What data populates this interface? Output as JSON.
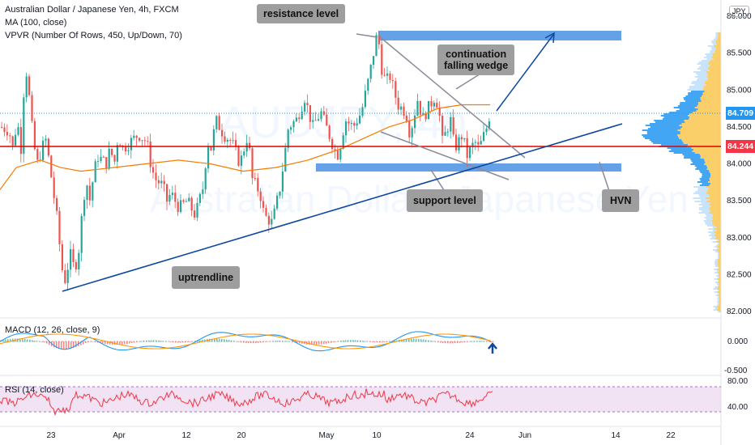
{
  "header": {
    "title": "Australian Dollar / Japanese Yen, 4h, FXCM",
    "ma": "MA (100, close)",
    "vpvr": "VPVR (Number Of Rows, 450, Up/Down, 70)",
    "currency_badge": "JPY"
  },
  "watermark": {
    "symbol": "AUDJPY, 4h",
    "name": "Australian Dollar / Japanese Yen"
  },
  "annotations": {
    "resistance": "resistance level",
    "continuation_line1": "continuation",
    "continuation_line2": "falling wedge",
    "support": "support level",
    "uptrend": "uptrendline",
    "hvn": "HVN"
  },
  "price_tags": {
    "last": "84.709",
    "red_line": "84.244",
    "last_color": "#2196f3",
    "red_color": "#f23645"
  },
  "macd": {
    "label": "MACD (12, 26, close, 9)",
    "ticks": [
      "0.000",
      "-0.500"
    ]
  },
  "rsi": {
    "label": "RSI (14, close)",
    "ticks": [
      "80.00",
      "40.00"
    ]
  },
  "colors": {
    "up": "#26a69a",
    "down": "#ef5350",
    "ma": "#f57c00",
    "trend": "#0d47a1",
    "zone": "#4a90e2",
    "macd_line": "#2196f3",
    "signal_line": "#ff9800",
    "rsi_line": "#f23645",
    "rsi_band": "#e1bee7",
    "vp_yellow": "#f9c74f",
    "vp_blue": "#90caf9"
  },
  "chart_data": {
    "type": "candlestick",
    "y_axis": {
      "ticks": [
        "86.000",
        "85.500",
        "85.000",
        "84.500",
        "84.000",
        "83.500",
        "83.000",
        "82.500",
        "82.000"
      ],
      "range": [
        81.95,
        86.1
      ]
    },
    "x_axis": {
      "ticks": [
        "23",
        "Apr",
        "12",
        "20",
        "May",
        "10",
        "24",
        "Jun",
        "14",
        "22"
      ]
    },
    "ohlc_path": [
      [
        0,
        84.5
      ],
      [
        10,
        84.45
      ],
      [
        15,
        84.2
      ],
      [
        20,
        84.6
      ],
      [
        25,
        84.2
      ],
      [
        30,
        85.4
      ],
      [
        35,
        84.9
      ],
      [
        40,
        84.3
      ],
      [
        45,
        84.0
      ],
      [
        55,
        84.35
      ],
      [
        60,
        84.0
      ],
      [
        65,
        83.6
      ],
      [
        70,
        83.2
      ],
      [
        75,
        82.6
      ],
      [
        80,
        82.4
      ],
      [
        85,
        82.8
      ],
      [
        90,
        82.6
      ],
      [
        95,
        82.7
      ],
      [
        100,
        83.3
      ],
      [
        105,
        83.8
      ],
      [
        110,
        83.5
      ],
      [
        115,
        83.9
      ],
      [
        120,
        84.1
      ],
      [
        130,
        84.0
      ],
      [
        135,
        84.2
      ],
      [
        140,
        84.0
      ],
      [
        145,
        84.4
      ],
      [
        150,
        84.2
      ],
      [
        160,
        84.3
      ],
      [
        170,
        84.4
      ],
      [
        180,
        84.3
      ],
      [
        185,
        84.0
      ],
      [
        190,
        83.8
      ],
      [
        200,
        83.7
      ],
      [
        205,
        83.5
      ],
      [
        210,
        83.6
      ],
      [
        220,
        83.4
      ],
      [
        230,
        83.5
      ],
      [
        240,
        83.3
      ],
      [
        250,
        83.7
      ],
      [
        255,
        84.3
      ],
      [
        260,
        84.2
      ],
      [
        265,
        84.6
      ],
      [
        275,
        84.4
      ],
      [
        285,
        84.3
      ],
      [
        295,
        84.0
      ],
      [
        305,
        84.4
      ],
      [
        310,
        83.8
      ],
      [
        320,
        83.6
      ],
      [
        325,
        83.3
      ],
      [
        335,
        83.2
      ],
      [
        345,
        83.7
      ],
      [
        350,
        84.1
      ],
      [
        355,
        84.5
      ],
      [
        365,
        84.6
      ],
      [
        375,
        84.9
      ],
      [
        385,
        84.5
      ],
      [
        395,
        84.7
      ],
      [
        405,
        84.4
      ],
      [
        415,
        84.1
      ],
      [
        420,
        84.3
      ],
      [
        425,
        84.6
      ],
      [
        435,
        84.5
      ],
      [
        445,
        84.7
      ],
      [
        455,
        85.2
      ],
      [
        460,
        85.5
      ],
      [
        465,
        85.8
      ],
      [
        470,
        85.3
      ],
      [
        475,
        85.1
      ],
      [
        480,
        85.2
      ],
      [
        490,
        84.8
      ],
      [
        500,
        84.7
      ],
      [
        505,
        84.4
      ],
      [
        515,
        84.9
      ],
      [
        520,
        84.6
      ],
      [
        525,
        84.7
      ],
      [
        535,
        84.9
      ],
      [
        540,
        84.8
      ],
      [
        545,
        84.3
      ],
      [
        555,
        84.6
      ],
      [
        560,
        84.2
      ],
      [
        570,
        84.4
      ],
      [
        575,
        84.1
      ],
      [
        585,
        84.3
      ],
      [
        590,
        84.2
      ],
      [
        600,
        84.5
      ],
      [
        605,
        84.75
      ]
    ],
    "ma_path": [
      [
        0,
        83.65
      ],
      [
        20,
        83.95
      ],
      [
        50,
        84.05
      ],
      [
        75,
        83.95
      ],
      [
        100,
        83.9
      ],
      [
        140,
        83.95
      ],
      [
        180,
        84.0
      ],
      [
        220,
        84.05
      ],
      [
        260,
        84.0
      ],
      [
        300,
        83.9
      ],
      [
        340,
        83.95
      ],
      [
        380,
        84.05
      ],
      [
        420,
        84.2
      ],
      [
        450,
        84.35
      ],
      [
        480,
        84.5
      ],
      [
        510,
        84.6
      ],
      [
        540,
        84.75
      ],
      [
        570,
        84.8
      ],
      [
        605,
        84.8
      ]
    ]
  }
}
